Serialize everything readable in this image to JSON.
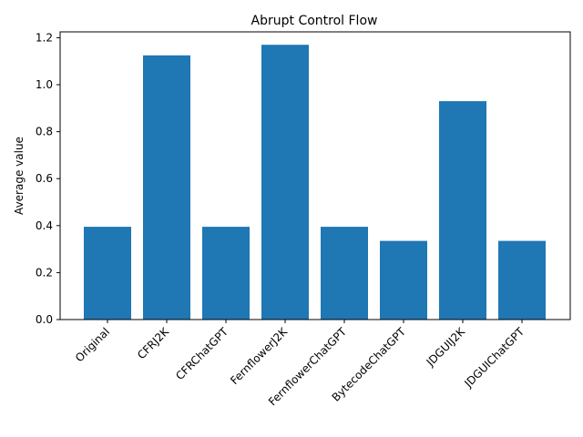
{
  "chart_data": {
    "type": "bar",
    "title": "Abrupt Control Flow",
    "xlabel": "",
    "ylabel": "Average value",
    "categories": [
      "Original",
      "CFRJ2K",
      "CFRChatGPT",
      "FernflowerJ2K",
      "FernflowerChatGPT",
      "BytecodeChatGPT",
      "JDGUIJ2K",
      "JDGUIChatGPT"
    ],
    "values": [
      0.395,
      1.125,
      0.395,
      1.17,
      0.395,
      0.335,
      0.93,
      0.335
    ],
    "ylim": [
      0,
      1.225
    ],
    "yticks": [
      "0.0",
      "0.2",
      "0.4",
      "0.6",
      "0.8",
      "1.0",
      "1.2"
    ],
    "grid": false,
    "bar_color": "#1f77b4"
  }
}
